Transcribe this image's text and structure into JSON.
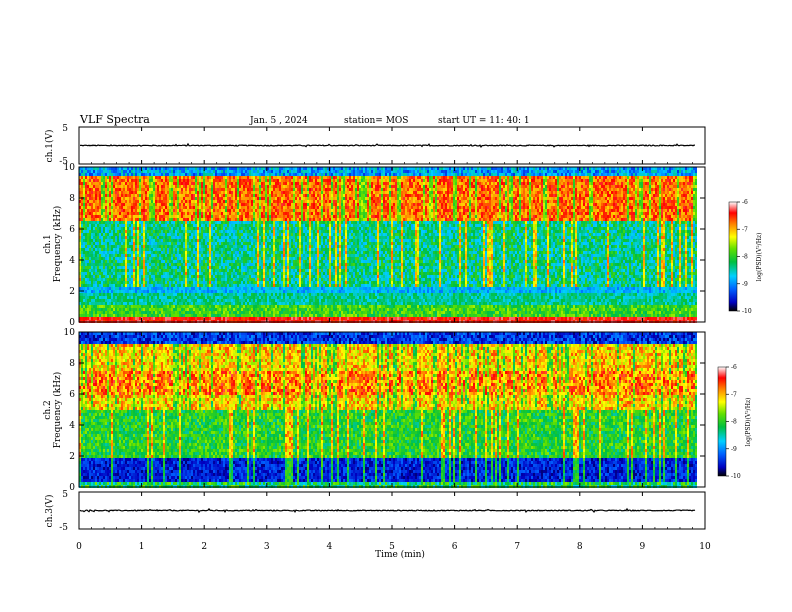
{
  "header": {
    "title": "VLF Spectra",
    "date": "Jan. 5 , 2024",
    "station": "station= MOS",
    "start": "start  UT =   11: 40: 1"
  },
  "chart_data": [
    {
      "type": "line",
      "panel": "ch1-waveform",
      "ylabel": "ch.1(V)",
      "yticks": [
        "5",
        "-5"
      ],
      "ylim": [
        -5,
        5
      ],
      "xlim": [
        0,
        10
      ],
      "baseline": 0
    },
    {
      "type": "heatmap",
      "panel": "ch1-spectrogram",
      "ylabel": "ch.1\nFrequency (kHz)",
      "ylabel_lines": [
        "ch.1",
        "Frequency (kHz)"
      ],
      "yticks": [
        "0",
        "2",
        "4",
        "6",
        "8",
        "10"
      ],
      "ylim": [
        0,
        10
      ],
      "xlim": [
        0,
        9.85
      ],
      "colorbar": {
        "label": "log(PSD)(V²/Hz)",
        "range": [
          -10,
          -6
        ],
        "ticks": [
          "-6",
          "-7",
          "-8",
          "-9",
          "-10"
        ]
      }
    },
    {
      "type": "heatmap",
      "panel": "ch2-spectrogram",
      "ylabel": "ch.2\nFrequency (kHz)",
      "ylabel_lines": [
        "ch.2",
        "Frequency (kHz)"
      ],
      "yticks": [
        "0",
        "2",
        "4",
        "6",
        "8",
        "10"
      ],
      "ylim": [
        0,
        10
      ],
      "xlim": [
        0,
        9.85
      ],
      "colorbar": {
        "label": "log(PSD)(V²/Hz)",
        "range": [
          -10,
          -6
        ],
        "ticks": [
          "-6",
          "-7",
          "-8",
          "-9",
          "-10"
        ]
      }
    },
    {
      "type": "line",
      "panel": "ch3-waveform",
      "ylabel": "ch.3(V)",
      "yticks": [
        "5",
        "-5"
      ],
      "ylim": [
        -5,
        5
      ],
      "xlim": [
        0,
        10
      ],
      "baseline": 0
    }
  ],
  "xaxis": {
    "label": "Time (min)",
    "ticks": [
      "0",
      "1",
      "2",
      "3",
      "4",
      "5",
      "6",
      "7",
      "8",
      "9",
      "10"
    ]
  }
}
